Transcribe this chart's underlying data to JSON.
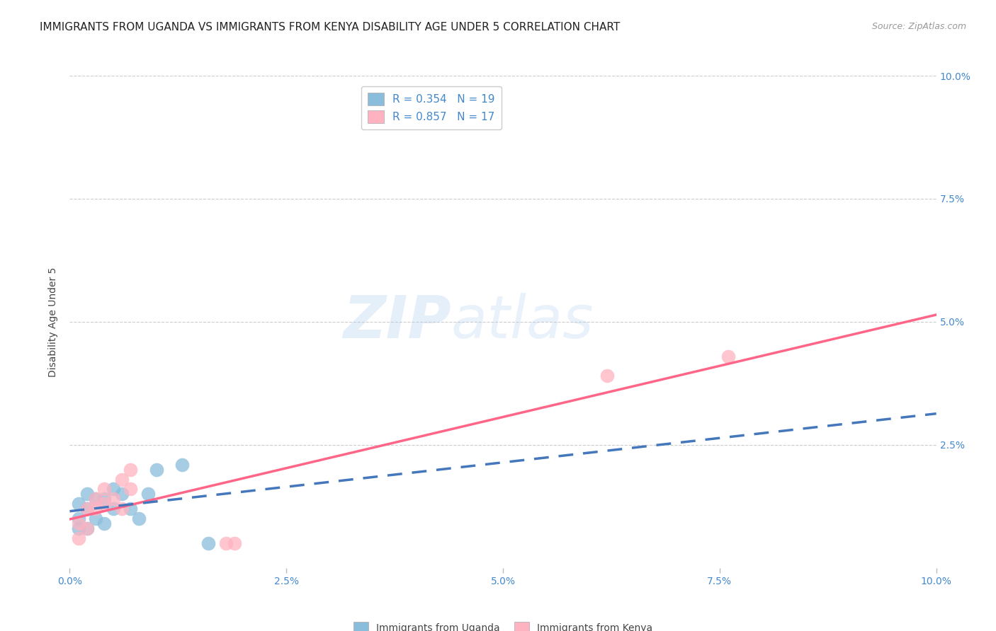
{
  "title": "IMMIGRANTS FROM UGANDA VS IMMIGRANTS FROM KENYA DISABILITY AGE UNDER 5 CORRELATION CHART",
  "source": "Source: ZipAtlas.com",
  "ylabel": "Disability Age Under 5",
  "xlabel": "",
  "xlim": [
    0.0,
    0.1
  ],
  "ylim": [
    0.0,
    0.1
  ],
  "xtick_labels": [
    "0.0%",
    "",
    "",
    "",
    "",
    "2.5%",
    "",
    "",
    "",
    "",
    "5.0%",
    "",
    "",
    "",
    "",
    "7.5%",
    "",
    "",
    "",
    "",
    "10.0%"
  ],
  "xtick_vals": [
    0.0,
    0.005,
    0.01,
    0.015,
    0.02,
    0.025,
    0.03,
    0.035,
    0.04,
    0.045,
    0.05,
    0.055,
    0.06,
    0.065,
    0.07,
    0.075,
    0.08,
    0.085,
    0.09,
    0.095,
    0.1
  ],
  "xtick_major_vals": [
    0.0,
    0.025,
    0.05,
    0.075,
    0.1
  ],
  "xtick_major_labels": [
    "0.0%",
    "2.5%",
    "5.0%",
    "7.5%",
    "10.0%"
  ],
  "ytick_major_vals": [
    0.025,
    0.05,
    0.075,
    0.1
  ],
  "ytick_major_labels": [
    "2.5%",
    "5.0%",
    "7.5%",
    "10.0%"
  ],
  "uganda_color": "#89BDDB",
  "uganda_line_color": "#4477BB",
  "kenya_color": "#FFB3C1",
  "kenya_line_color": "#FF6688",
  "uganda_R": 0.354,
  "uganda_N": 19,
  "kenya_R": 0.857,
  "kenya_N": 17,
  "uganda_x": [
    0.001,
    0.001,
    0.001,
    0.002,
    0.002,
    0.002,
    0.003,
    0.003,
    0.004,
    0.004,
    0.005,
    0.005,
    0.006,
    0.007,
    0.008,
    0.009,
    0.01,
    0.013,
    0.016
  ],
  "uganda_y": [
    0.008,
    0.01,
    0.013,
    0.008,
    0.012,
    0.015,
    0.01,
    0.014,
    0.009,
    0.014,
    0.012,
    0.016,
    0.015,
    0.012,
    0.01,
    0.015,
    0.02,
    0.021,
    0.005
  ],
  "kenya_x": [
    0.001,
    0.001,
    0.002,
    0.002,
    0.003,
    0.003,
    0.004,
    0.004,
    0.005,
    0.006,
    0.006,
    0.007,
    0.007,
    0.018,
    0.019,
    0.062,
    0.076
  ],
  "kenya_y": [
    0.006,
    0.009,
    0.008,
    0.012,
    0.012,
    0.014,
    0.013,
    0.016,
    0.014,
    0.012,
    0.018,
    0.016,
    0.02,
    0.005,
    0.005,
    0.039,
    0.043
  ],
  "watermark_zip": "ZIP",
  "watermark_atlas": "atlas",
  "title_fontsize": 11,
  "label_fontsize": 10,
  "tick_fontsize": 10,
  "source_fontsize": 9,
  "background_color": "#FFFFFF",
  "grid_color": "#CCCCCC"
}
